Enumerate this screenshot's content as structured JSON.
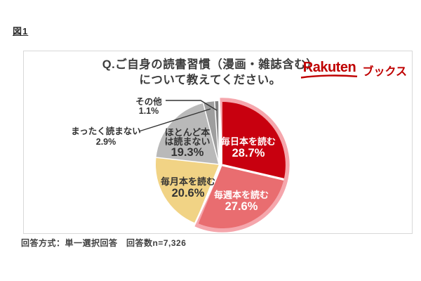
{
  "figure": {
    "label": "図1"
  },
  "panel": {
    "title_line1": "Q.ご自身の読書習慣（漫画・雑誌含む）",
    "title_line2": "について教えてください。",
    "logo": {
      "brand": "Rakuten",
      "suffix": "ブックス",
      "color": "#BF0000"
    }
  },
  "footer": {
    "text": "回答方式：単一選択回答　回答数n=7,326"
  },
  "chart_data": {
    "type": "pie",
    "title": "Q.ご自身の読書習慣（漫画・雑誌含む）について教えてください。",
    "survey_method": "単一選択回答",
    "n": "7,326",
    "unit": "%",
    "start_angle_deg": 0,
    "direction": "clockwise",
    "highlight_ring_color": "#F5A6AC",
    "slices": [
      {
        "label": "毎日本を読む",
        "value": 28.7,
        "pct_label": "28.7%",
        "color": "#C8000F",
        "text_color": "#ffffff",
        "highlighted": true,
        "label_style": "inside",
        "label_lines": [
          "毎日本を読む"
        ]
      },
      {
        "label": "毎週本を読む",
        "value": 27.6,
        "pct_label": "27.6%",
        "color": "#E96D70",
        "text_color": "#ffffff",
        "highlighted": true,
        "label_style": "inside",
        "label_lines": [
          "毎週本を読む"
        ]
      },
      {
        "label": "毎月本を読む",
        "value": 20.6,
        "pct_label": "20.6%",
        "color": "#F1D385",
        "text_color": "#333333",
        "highlighted": false,
        "label_style": "inside",
        "label_lines": [
          "毎月本を読む"
        ]
      },
      {
        "label": "ほとんど本は読まない",
        "value": 19.3,
        "pct_label": "19.3%",
        "color": "#B9B9B9",
        "text_color": "#333333",
        "highlighted": false,
        "label_style": "inside",
        "label_lines": [
          "ほとんど本",
          "は読まない"
        ]
      },
      {
        "label": "まったく読まない",
        "value": 2.9,
        "pct_label": "2.9%",
        "color": "#9E9E9E",
        "text_color": "#333333",
        "highlighted": false,
        "label_style": "callout",
        "label_lines": [
          "まったく読まない"
        ]
      },
      {
        "label": "その他",
        "value": 1.1,
        "pct_label": "1.1%",
        "color": "#828282",
        "text_color": "#333333",
        "highlighted": false,
        "label_style": "callout",
        "label_lines": [
          "その他"
        ]
      }
    ]
  }
}
